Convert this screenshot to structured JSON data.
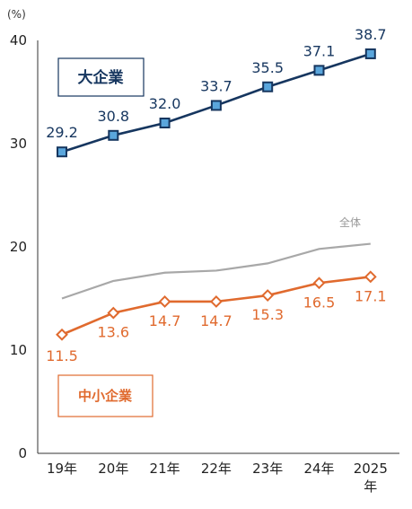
{
  "chart_data": {
    "type": "line",
    "categories": [
      "19年",
      "20年",
      "21年",
      "22年",
      "23年",
      "24年",
      "2025"
    ],
    "x_last_suffix": "年",
    "y_unit": "(%)",
    "ylim": [
      0,
      40
    ],
    "y_ticks": [
      "0",
      "10",
      "20",
      "30",
      "40"
    ],
    "grid": false,
    "series": [
      {
        "name": "大企業",
        "values": [
          29.2,
          30.8,
          32.0,
          33.7,
          35.5,
          37.1,
          38.7
        ],
        "labels": [
          "29.2",
          "30.8",
          "32.0",
          "33.7",
          "35.5",
          "37.1",
          "38.7"
        ],
        "color": "#16365f",
        "marker_fill": "#5aa6dc",
        "marker": "square"
      },
      {
        "name": "中小企業",
        "values": [
          11.5,
          13.6,
          14.7,
          14.7,
          15.3,
          16.5,
          17.1
        ],
        "labels": [
          "11.5",
          "13.6",
          "14.7",
          "14.7",
          "15.3",
          "16.5",
          "17.1"
        ],
        "color": "#e06a2e",
        "marker_fill": "#ffffff",
        "marker": "diamond"
      },
      {
        "name": "全体",
        "values": [
          15.0,
          16.7,
          17.5,
          17.7,
          18.4,
          19.8,
          20.3
        ],
        "color": "#a8a8a8",
        "marker": "none"
      }
    ]
  }
}
